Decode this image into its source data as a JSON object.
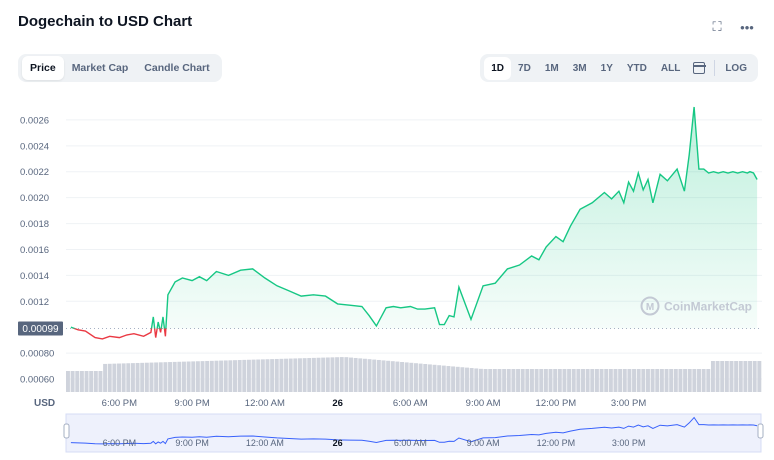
{
  "header": {
    "title": "Dogechain to USD Chart"
  },
  "tabs": {
    "items": [
      {
        "label": "Price"
      },
      {
        "label": "Market Cap"
      },
      {
        "label": "Candle Chart"
      }
    ],
    "active": "Price"
  },
  "ranges": {
    "items": [
      {
        "label": "1D"
      },
      {
        "label": "7D"
      },
      {
        "label": "1M"
      },
      {
        "label": "3M"
      },
      {
        "label": "1Y"
      },
      {
        "label": "YTD"
      },
      {
        "label": "ALL"
      }
    ],
    "active": "1D",
    "log_label": "LOG"
  },
  "watermark": "CoinMarketCap",
  "currency_label": "USD",
  "current_price_label": "0.00099",
  "colors": {
    "up": "#16c784",
    "down": "#ea3943",
    "volume": "#cfd3dc",
    "navigator": "#3861fb"
  },
  "chart_data": {
    "type": "line",
    "series": [
      {
        "x": [
          0,
          0.3,
          0.6,
          1,
          1.3,
          1.6,
          2,
          2.3,
          2.6,
          3,
          3.3,
          3.4,
          3.5,
          3.6,
          3.7,
          3.8,
          3.9,
          4,
          4.3,
          4.6,
          5,
          5.3,
          5.6,
          6,
          6.5,
          7,
          7.5,
          8,
          8.5,
          9,
          9.5,
          10,
          10.5,
          11,
          11.5,
          12,
          12.3,
          12.6,
          13,
          13.3,
          13.6,
          14,
          14.3,
          14.6,
          15,
          15.2,
          15.4,
          15.6,
          15.8,
          16,
          16.5,
          17,
          17.5,
          18,
          18.5,
          19,
          19.3,
          19.6,
          20,
          20.3,
          20.6,
          21,
          21.5,
          22,
          22.3,
          22.6,
          22.8,
          23,
          23.2,
          23.4,
          23.6,
          23.8,
          24,
          24.3,
          24.6,
          25,
          25.3,
          25.5,
          25.7,
          25.9,
          26.1,
          26.3,
          26.5,
          26.7,
          26.9,
          27.1,
          27.3,
          27.5,
          27.7,
          27.9,
          28,
          28.15,
          28.3
        ],
        "y": [
          0.001,
          0.00098,
          0.00097,
          0.00092,
          0.00091,
          0.00093,
          0.00092,
          0.00094,
          0.00095,
          0.00093,
          0.00096,
          0.00108,
          0.00092,
          0.00104,
          0.00096,
          0.00108,
          0.00093,
          0.00125,
          0.00135,
          0.00138,
          0.00136,
          0.00139,
          0.00136,
          0.00143,
          0.0014,
          0.00144,
          0.00145,
          0.00138,
          0.00132,
          0.00128,
          0.00124,
          0.00125,
          0.00124,
          0.00118,
          0.00117,
          0.00116,
          0.00109,
          0.00101,
          0.00115,
          0.00116,
          0.00115,
          0.00116,
          0.00114,
          0.00114,
          0.00115,
          0.00102,
          0.00102,
          0.00109,
          0.00108,
          0.00131,
          0.00106,
          0.00132,
          0.00134,
          0.00145,
          0.00148,
          0.00155,
          0.00152,
          0.00162,
          0.0017,
          0.00166,
          0.00178,
          0.00191,
          0.00196,
          0.00204,
          0.00199,
          0.00205,
          0.00196,
          0.00212,
          0.00205,
          0.00219,
          0.00206,
          0.00214,
          0.00196,
          0.00218,
          0.00213,
          0.00222,
          0.00205,
          0.00233,
          0.0027,
          0.00222,
          0.00222,
          0.00219,
          0.0022,
          0.00219,
          0.0022,
          0.00219,
          0.0022,
          0.00219,
          0.0022,
          0.00219,
          0.0022,
          0.00219,
          0.00214
        ]
      }
    ],
    "y_ticks": [
      "0.00060",
      "0.00080",
      "0.0012",
      "0.0014",
      "0.0016",
      "0.0018",
      "0.0020",
      "0.0022",
      "0.0024",
      "0.0026"
    ],
    "ylim": [
      0.0005,
      0.0028
    ],
    "x_ticks": [
      "6:00 PM",
      "9:00 PM",
      "12:00 AM",
      "26",
      "6:00 AM",
      "9:00 AM",
      "12:00 PM",
      "3:00 PM"
    ],
    "x_tick_hours": [
      2,
      5,
      8,
      11,
      14,
      17,
      20,
      23
    ],
    "xlim": [
      -0.2,
      28.5
    ],
    "baseline": 0.00099,
    "volume": {
      "start": 0.42,
      "plateau": 0.56,
      "high": 0.7,
      "end_low": 0.46,
      "end": 0.62
    }
  }
}
